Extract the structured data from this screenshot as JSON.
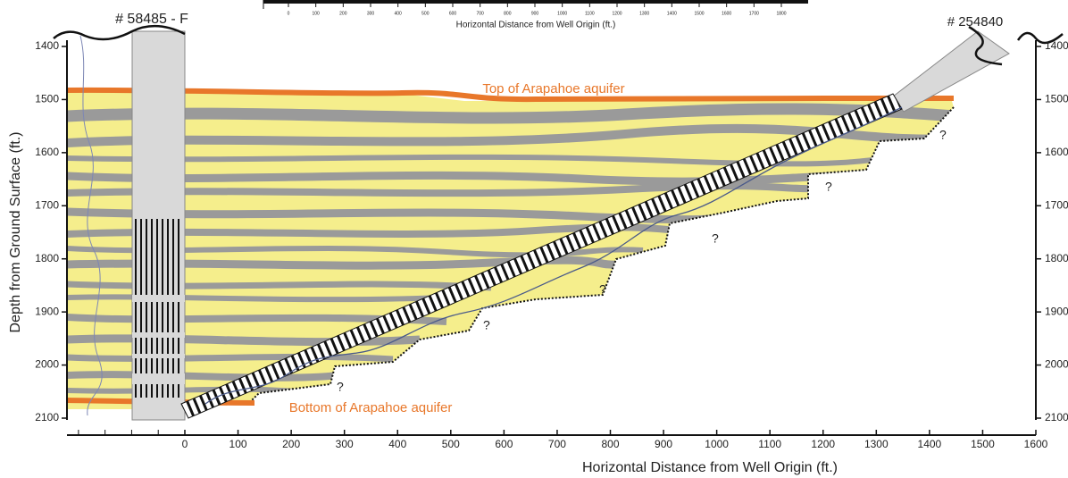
{
  "inset": {
    "ticks": [
      0,
      100,
      200,
      300,
      400,
      500,
      600,
      700,
      800,
      900,
      1000,
      1100,
      1200,
      1300,
      1400,
      1500,
      1600,
      1700,
      1800
    ],
    "axis_label": "Horizontal Distance from Well Origin (ft.)"
  },
  "x_axis": {
    "label": "Horizontal Distance from Well Origin (ft.)",
    "ticks": [
      0,
      100,
      200,
      300,
      400,
      500,
      600,
      700,
      800,
      900,
      1000,
      1100,
      1200,
      1300,
      1400,
      1500,
      1600
    ]
  },
  "y_axis": {
    "label": "Depth from Ground Surface (ft.)",
    "ticks": [
      1400,
      1500,
      1600,
      1700,
      1800,
      1900,
      2000,
      2100
    ]
  },
  "wells": [
    {
      "label": "# 58485 - F"
    },
    {
      "label": "# 254840"
    }
  ],
  "annotations": [
    "Top of Arapahoe aquifer",
    "Bottom of Arapahoe aquifer",
    "?",
    "?",
    "?",
    "?",
    "?",
    "?"
  ]
}
